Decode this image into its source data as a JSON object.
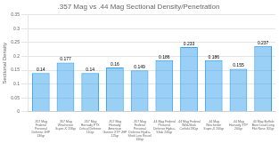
{
  "chart_data": {
    "type": "bar",
    "title": ".357 Mag vs .44 Mag Sectional Density/Penetration",
    "y_label": "Sectional Density",
    "categories": [
      ".357 Mag\nFederal\nPersonal\nDefense JHP\n130gr",
      ".357 Mag\nWinchester\nSuper-X 158gr",
      ".357 Mag\nHornady FTX\nCritical Defense\n110gr",
      ".357 Mag\nHornady\nAmerican\nGunner XTP JHP\n125gr",
      ".357 Mag\nFederal\nPersonal\nDefense Hydra-\nShok Low Recoil\n130gr",
      ".44 Mag Federal\nPersonal\nDefense Hydra-\nShok 240gr",
      ".44 Mag Federal\nWild-Shok\nCorlokt 280gr",
      ".44 Mag\nWinchester\nSuper-X 240gr",
      ".44 Mag\nHornady XTP\n200gr",
      ".44 Mag Buffalo\nBore Lead Long\nFlat Nose 305gr"
    ],
    "values": [
      0.14,
      0.177,
      0.14,
      0.16,
      0.149,
      0.186,
      0.233,
      0.186,
      0.155,
      0.237
    ],
    "ylim": [
      0,
      0.35
    ],
    "yticks": [
      0,
      0.05,
      0.1,
      0.15,
      0.2,
      0.25,
      0.3,
      0.35
    ],
    "grid": true,
    "data_labels": true
  }
}
